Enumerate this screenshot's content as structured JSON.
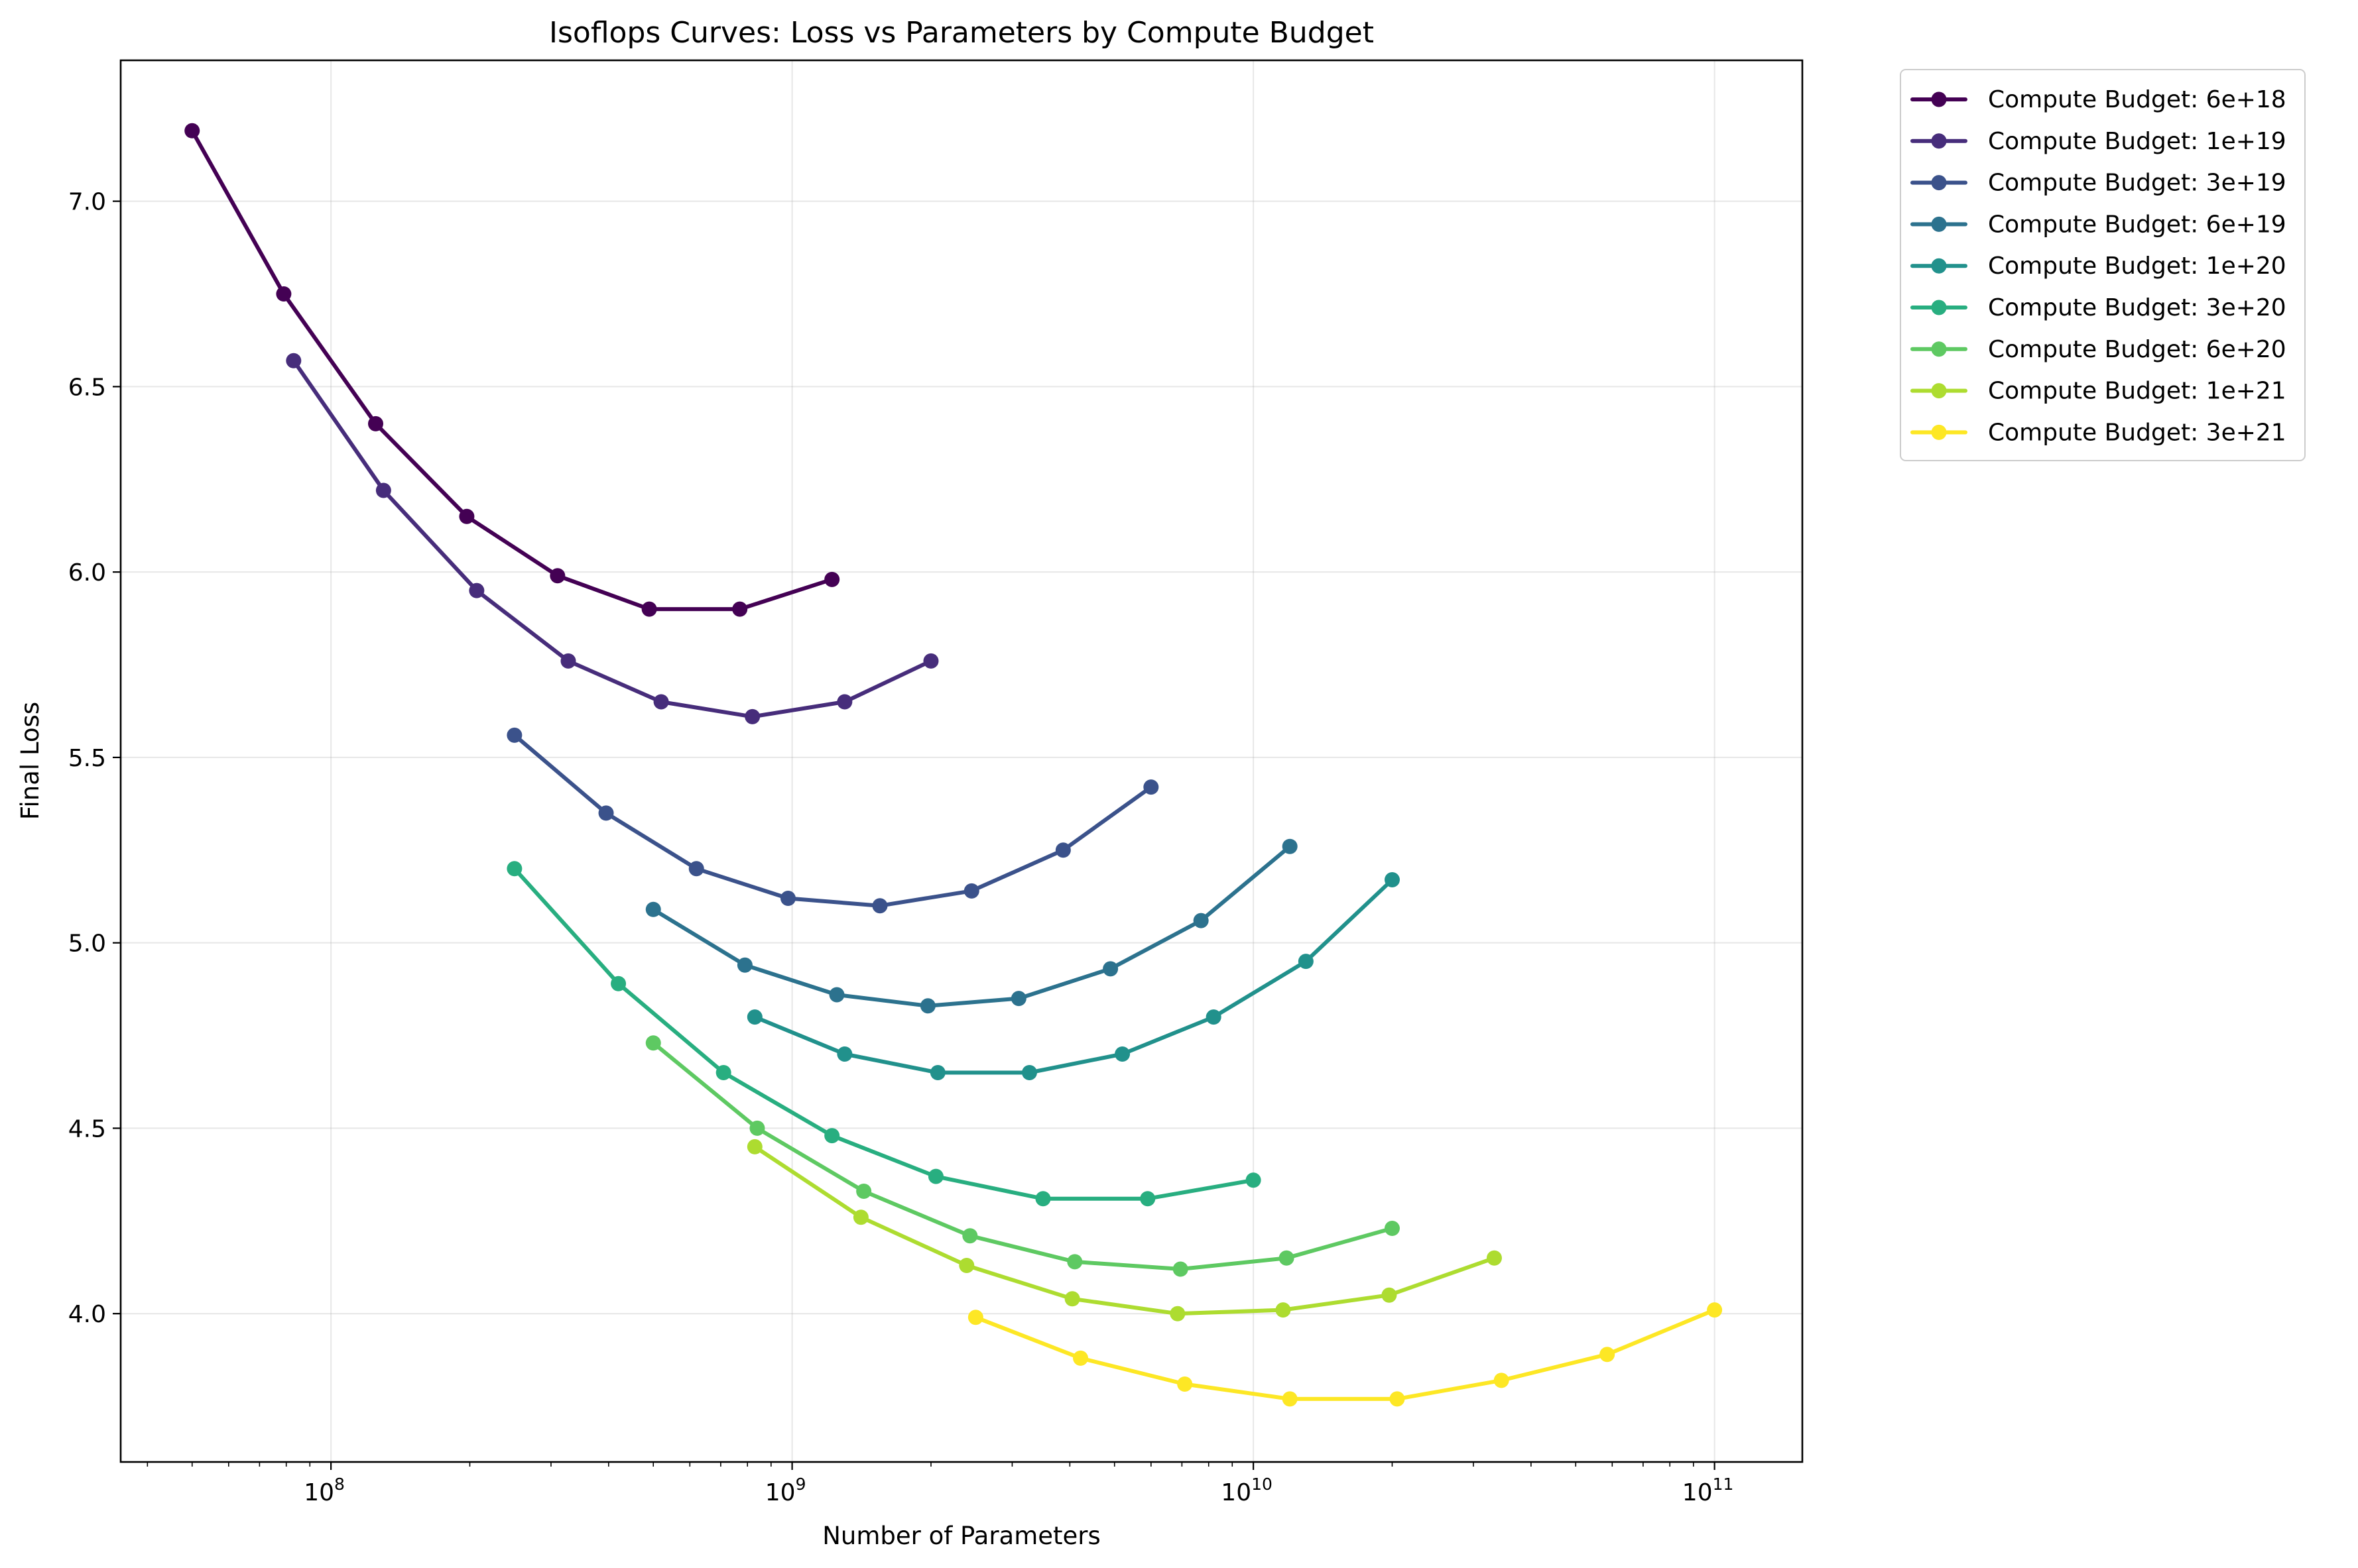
{
  "chart_data": {
    "type": "line",
    "title": "Isoflops Curves: Loss vs Parameters by Compute Budget",
    "xlabel": "Number of Parameters",
    "ylabel": "Final Loss",
    "xscale": "log",
    "xlim": [
      35000000.0,
      155000000000.0
    ],
    "ylim": [
      3.6,
      7.38
    ],
    "x_ticks": [
      {
        "value": 100000000.0,
        "base": "10",
        "exp": "8"
      },
      {
        "value": 1000000000.0,
        "base": "10",
        "exp": "9"
      },
      {
        "value": 10000000000.0,
        "base": "10",
        "exp": "10"
      },
      {
        "value": 100000000000.0,
        "base": "10",
        "exp": "11"
      }
    ],
    "y_ticks": [
      {
        "value": 4.0,
        "label": "4.0"
      },
      {
        "value": 4.5,
        "label": "4.5"
      },
      {
        "value": 5.0,
        "label": "5.0"
      },
      {
        "value": 5.5,
        "label": "5.5"
      },
      {
        "value": 6.0,
        "label": "6.0"
      },
      {
        "value": 6.5,
        "label": "6.5"
      },
      {
        "value": 7.0,
        "label": "7.0"
      }
    ],
    "grid": true,
    "legend_position": "outside-top-right",
    "series": [
      {
        "name": "Compute Budget: 6e+18",
        "color": "#440154",
        "x": [
          50000000.0,
          79000000.0,
          125000000.0,
          197000000.0,
          310000000.0,
          490000000.0,
          770000000.0,
          1220000000.0
        ],
        "y": [
          7.19,
          6.75,
          6.4,
          6.15,
          5.99,
          5.9,
          5.9,
          5.98
        ]
      },
      {
        "name": "Compute Budget: 1e+19",
        "color": "#472d7b",
        "x": [
          83000000.0,
          130000000.0,
          207000000.0,
          327000000.0,
          520000000.0,
          820000000.0,
          1300000000.0,
          2000000000.0
        ],
        "y": [
          6.57,
          6.22,
          5.95,
          5.76,
          5.65,
          5.61,
          5.65,
          5.76
        ]
      },
      {
        "name": "Compute Budget: 3e+19",
        "color": "#3b528b",
        "x": [
          250000000.0,
          395000000.0,
          620000000.0,
          980000000.0,
          1550000000.0,
          2450000000.0,
          3870000000.0,
          6000000000.0
        ],
        "y": [
          5.56,
          5.35,
          5.2,
          5.12,
          5.1,
          5.14,
          5.25,
          5.42
        ]
      },
      {
        "name": "Compute Budget: 6e+19",
        "color": "#2c728e",
        "x": [
          500000000.0,
          790000000.0,
          1250000000.0,
          1970000000.0,
          3100000000.0,
          4900000000.0,
          7700000000.0,
          12000000000.0
        ],
        "y": [
          5.09,
          4.94,
          4.86,
          4.83,
          4.85,
          4.93,
          5.06,
          5.26
        ]
      },
      {
        "name": "Compute Budget: 1e+20",
        "color": "#21918c",
        "x": [
          830000000.0,
          1300000000.0,
          2070000000.0,
          3270000000.0,
          5200000000.0,
          8200000000.0,
          13000000000.0,
          20000000000.0
        ],
        "y": [
          4.8,
          4.7,
          4.65,
          4.65,
          4.7,
          4.8,
          4.95,
          5.17
        ]
      },
      {
        "name": "Compute Budget: 3e+20",
        "color": "#28ae80",
        "x": [
          250000000.0,
          420000000.0,
          710000000.0,
          1220000000.0,
          2050000000.0,
          3500000000.0,
          5900000000.0,
          10000000000.0
        ],
        "y": [
          5.2,
          4.89,
          4.65,
          4.48,
          4.37,
          4.31,
          4.31,
          4.36
        ]
      },
      {
        "name": "Compute Budget: 6e+20",
        "color": "#5ec962",
        "x": [
          500000000.0,
          840000000.0,
          1430000000.0,
          2430000000.0,
          4100000000.0,
          6950000000.0,
          11800000000.0,
          20000000000.0
        ],
        "y": [
          4.73,
          4.5,
          4.33,
          4.21,
          4.14,
          4.12,
          4.15,
          4.23
        ]
      },
      {
        "name": "Compute Budget: 1e+21",
        "color": "#addc30",
        "x": [
          830000000.0,
          1410000000.0,
          2390000000.0,
          4050000000.0,
          6850000000.0,
          11600000000.0,
          19700000000.0,
          33300000000.0
        ],
        "y": [
          4.45,
          4.26,
          4.13,
          4.04,
          4.0,
          4.01,
          4.05,
          4.15
        ]
      },
      {
        "name": "Compute Budget: 3e+21",
        "color": "#fde725",
        "x": [
          2500000000.0,
          4220000000.0,
          7100000000.0,
          12000000000.0,
          20500000000.0,
          34500000000.0,
          58500000000.0,
          100000000000.0
        ],
        "y": [
          3.99,
          3.88,
          3.81,
          3.77,
          3.77,
          3.82,
          3.89,
          4.01
        ]
      }
    ]
  }
}
